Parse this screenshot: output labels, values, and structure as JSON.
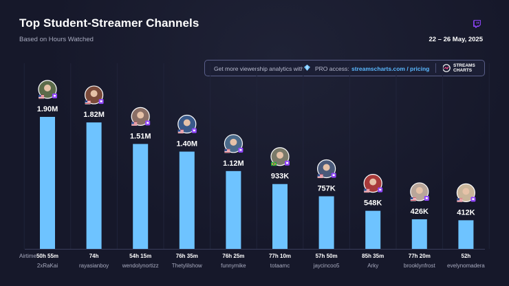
{
  "header": {
    "title": "Top Student-Streamer Channels",
    "subtitle": "Based on Hours Watched",
    "date_range": "22 – 26 May, 2025"
  },
  "promo": {
    "text_before": "Get more viewership analytics with",
    "text_pro": "PRO access:",
    "link": "streamscharts.com / pricing",
    "brand_line1": "STREAMS",
    "brand_line2": "CHARTS"
  },
  "icons": {
    "platform": "twitch-icon",
    "gem": "diamond-icon",
    "logo": "streamscharts-logo-icon"
  },
  "colors": {
    "bar": "#6ec3ff",
    "background": "#16182a",
    "link": "#5ab8ff",
    "twitch": "#9146ff"
  },
  "chart_data": {
    "type": "bar",
    "title": "Top Student-Streamer Channels",
    "subtitle": "Based on Hours Watched",
    "airtime_label": "Airtime",
    "categories": [
      "2xRaKai",
      "rayasianboy",
      "wendolynortizz",
      "Thetylilshow",
      "funnymike",
      "totaamc",
      "jaycincoo5",
      "Arky",
      "brooklynfrost",
      "evelynomadera"
    ],
    "values": [
      1900000,
      1820000,
      1510000,
      1400000,
      1120000,
      933000,
      757000,
      548000,
      426000,
      412000
    ],
    "value_labels": [
      "1.90M",
      "1.82M",
      "1.51M",
      "1.40M",
      "1.12M",
      "933K",
      "757K",
      "548K",
      "426K",
      "412K"
    ],
    "airtime": [
      "50h 55m",
      "74h",
      "54h 15m",
      "76h 35m",
      "76h 25m",
      "77h 10m",
      "57h 50m",
      "85h 35m",
      "77h 20m",
      "52h"
    ],
    "countries": [
      "US",
      "US",
      "US",
      "US",
      "US",
      "BR",
      "US",
      "US",
      "US",
      "US"
    ],
    "ylim": [
      0,
      2000000
    ],
    "grid": true
  }
}
